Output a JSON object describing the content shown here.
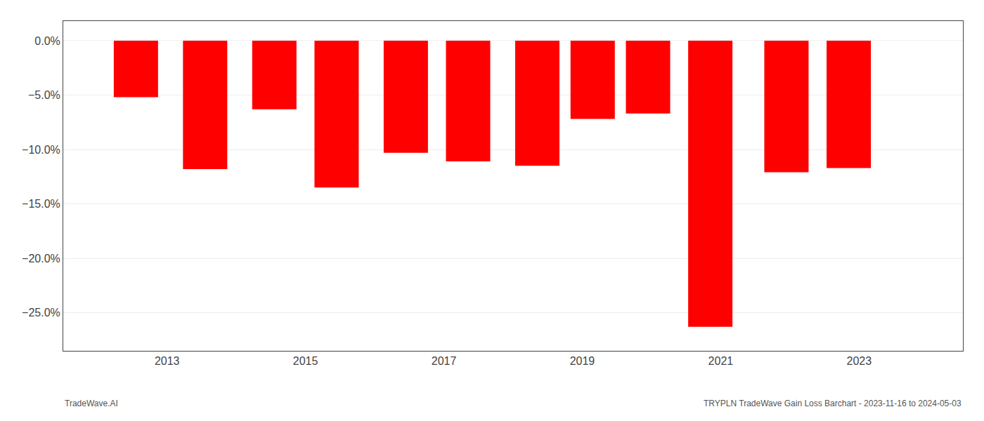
{
  "chart_data": {
    "type": "bar",
    "x": [
      2012.55,
      2013.55,
      2014.55,
      2015.45,
      2016.45,
      2017.35,
      2018.35,
      2019.15,
      2019.95,
      2020.85,
      2021.95,
      2022.85
    ],
    "values": [
      -5.2,
      -11.8,
      -6.3,
      -13.5,
      -10.3,
      -11.1,
      -11.5,
      -7.2,
      -6.7,
      -26.3,
      -12.1,
      -11.7
    ],
    "color": "#ff0000",
    "xlim": [
      2011.5,
      2024.5
    ],
    "xticks": [
      2013,
      2015,
      2017,
      2019,
      2021,
      2023
    ],
    "ylim": [
      -28.5,
      1.8
    ],
    "yticks": [
      {
        "value": 0.0,
        "label": "0.0%"
      },
      {
        "value": -5.0,
        "label": "−5.0%"
      },
      {
        "value": -10.0,
        "label": "−10.0%"
      },
      {
        "value": -15.0,
        "label": "−15.0%"
      },
      {
        "value": -20.0,
        "label": "−20.0%"
      },
      {
        "value": -25.0,
        "label": "−25.0%"
      }
    ],
    "grid": "y",
    "annotations": [
      "TradeWave.AI",
      "TRYPLN TradeWave Gain Loss Barchart - 2023-11-16 to 2024-05-03"
    ]
  }
}
